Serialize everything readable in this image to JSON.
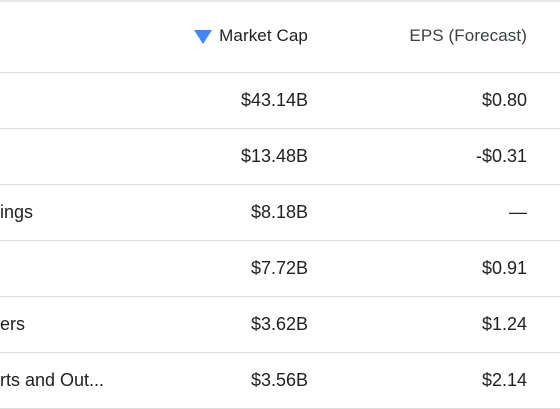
{
  "table": {
    "headers": {
      "market_cap": "Market Cap",
      "eps": "EPS (Forecast)"
    },
    "rows": [
      {
        "name": "",
        "market_cap": "$43.14B",
        "eps": "$0.80"
      },
      {
        "name": "",
        "market_cap": "$13.48B",
        "eps": "-$0.31"
      },
      {
        "name": "ings",
        "market_cap": "$8.18B",
        "eps": "—"
      },
      {
        "name": "",
        "market_cap": "$7.72B",
        "eps": "$0.91"
      },
      {
        "name": "ers",
        "market_cap": "$3.62B",
        "eps": "$1.24"
      },
      {
        "name": "rts and Out...",
        "market_cap": "$3.56B",
        "eps": "$2.14"
      }
    ]
  },
  "colors": {
    "sort_accent": "#4285f4"
  },
  "icons": {
    "sort": "sort-descending-icon"
  }
}
